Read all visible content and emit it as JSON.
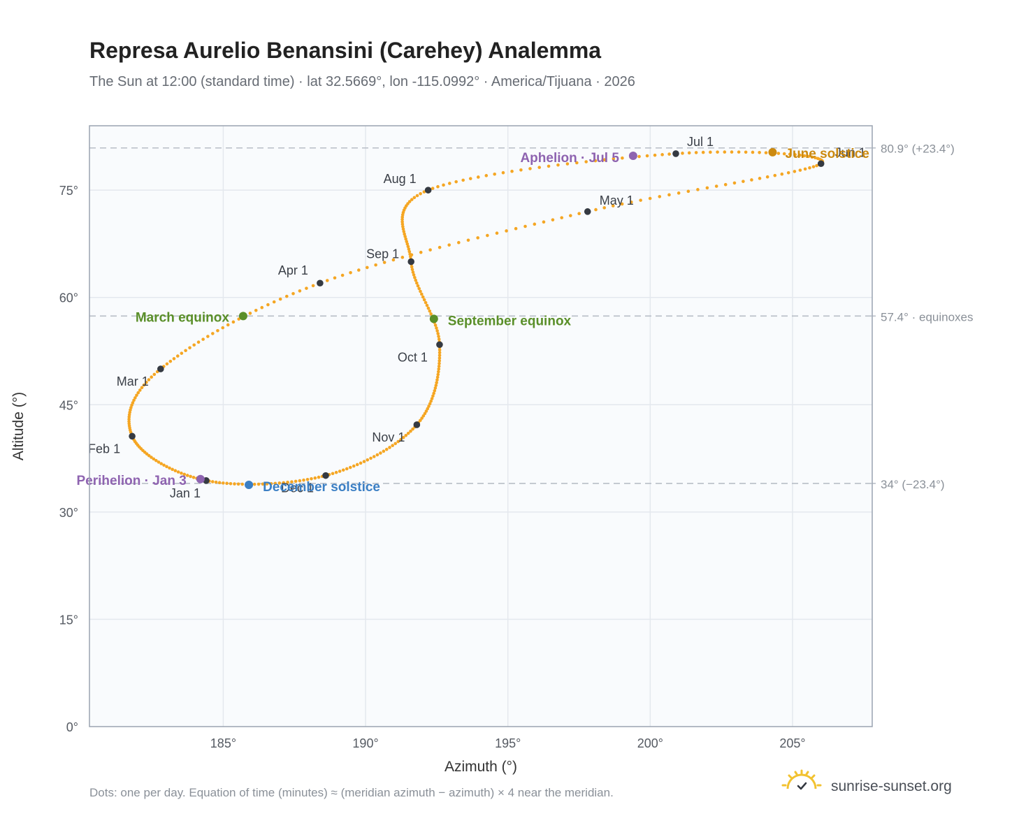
{
  "title": "Represa Aurelio Benansini (Carehey) Analemma",
  "subtitle": "The Sun at 12:00 (standard time) · lat 32.5669°, lon -115.0992° · America/Tijuana · 2026",
  "footer_note": "Dots: one per day. Equation of time (minutes) ≈ (meridian azimuth − azimuth) × 4 near the meridian.",
  "brand": {
    "name": "sunrise-sunset.org",
    "icon": "sun-logo-icon"
  },
  "colors": {
    "path": "#f5a623",
    "month_marker": "#353a42",
    "equinox": "#5a8f29",
    "june_solstice": "#cc8a10",
    "december_solstice": "#3b7fc4",
    "apsis": "#8e63b0",
    "grid": "#e4e8ee",
    "plot_bg": "#f9fbfd",
    "frame": "#9aa3b0",
    "reference_line": "#b8bec7"
  },
  "chart_data": {
    "type": "scatter",
    "xlabel": "Azimuth (°)",
    "ylabel": "Altitude (°)",
    "xlim": [
      180.3,
      207.8
    ],
    "ylim": [
      0,
      84
    ],
    "xticks": [
      185,
      190,
      195,
      200,
      205
    ],
    "yticks": [
      0,
      15,
      30,
      45,
      60,
      75
    ],
    "xtick_labels": [
      "185°",
      "190°",
      "195°",
      "200°",
      "205°"
    ],
    "ytick_labels": [
      "0°",
      "15°",
      "30°",
      "45°",
      "60°",
      "75°"
    ],
    "grid": true,
    "reference_lines": [
      {
        "altitude": 80.9,
        "label": "80.9° (+23.4°)"
      },
      {
        "altitude": 57.4,
        "label": "57.4° · equinoxes"
      },
      {
        "altitude": 34,
        "label": "34° (−23.4°)"
      }
    ],
    "month_markers": [
      {
        "label": "Jan 1",
        "az": 184.4,
        "alt": 34.4
      },
      {
        "label": "Feb 1",
        "az": 181.8,
        "alt": 40.6
      },
      {
        "label": "Mar 1",
        "az": 182.8,
        "alt": 50.0
      },
      {
        "label": "Apr 1",
        "az": 188.4,
        "alt": 62.0
      },
      {
        "label": "May 1",
        "az": 197.8,
        "alt": 72.0
      },
      {
        "label": "Jun 1",
        "az": 206.0,
        "alt": 78.7
      },
      {
        "label": "Jul 1",
        "az": 200.9,
        "alt": 80.1
      },
      {
        "label": "Aug 1",
        "az": 192.2,
        "alt": 75.0
      },
      {
        "label": "Sep 1",
        "az": 191.6,
        "alt": 65.0
      },
      {
        "label": "Oct 1",
        "az": 192.6,
        "alt": 53.4
      },
      {
        "label": "Nov 1",
        "az": 191.8,
        "alt": 42.2
      },
      {
        "label": "Dec 1",
        "az": 188.6,
        "alt": 35.1
      }
    ],
    "events": [
      {
        "label": "March equinox",
        "az": 185.7,
        "alt": 57.4,
        "color_key": "equinox"
      },
      {
        "label": "June solstice",
        "az": 204.3,
        "alt": 80.3,
        "color_key": "june_solstice"
      },
      {
        "label": "September equinox",
        "az": 192.4,
        "alt": 57.0,
        "color_key": "equinox"
      },
      {
        "label": "December solstice",
        "az": 185.9,
        "alt": 33.8,
        "color_key": "december_solstice"
      },
      {
        "label": "Perihelion · Jan 3",
        "az": 184.2,
        "alt": 34.6,
        "color_key": "apsis"
      },
      {
        "label": "Aphelion · Jul 5",
        "az": 199.4,
        "alt": 79.8,
        "color_key": "apsis"
      }
    ]
  }
}
